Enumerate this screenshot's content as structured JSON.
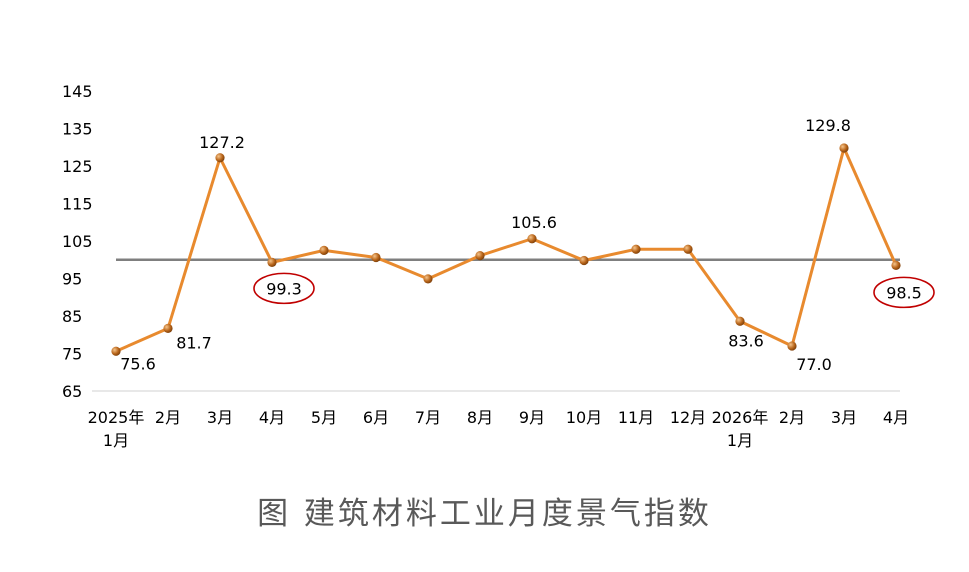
{
  "caption": "图 建筑材料工业月度景气指数",
  "chart_data": {
    "type": "line",
    "categories": [
      [
        "2025年",
        "1月"
      ],
      [
        "2月"
      ],
      [
        "3月"
      ],
      [
        "4月"
      ],
      [
        "5月"
      ],
      [
        "6月"
      ],
      [
        "7月"
      ],
      [
        "8月"
      ],
      [
        "9月"
      ],
      [
        "10月"
      ],
      [
        "11月"
      ],
      [
        "12月"
      ],
      [
        "2026年",
        "1月"
      ],
      [
        "2月"
      ],
      [
        "3月"
      ],
      [
        "4月"
      ]
    ],
    "series": [
      {
        "values": [
          75.6,
          81.7,
          127.2,
          99.3,
          102.5,
          100.6,
          94.9,
          101.1,
          105.6,
          99.8,
          102.8,
          102.8,
          83.6,
          77.0,
          129.8,
          98.5
        ]
      }
    ],
    "data_labels": [
      {
        "index": 0,
        "text": "75.6",
        "circled": false
      },
      {
        "index": 1,
        "text": "81.7",
        "circled": false
      },
      {
        "index": 2,
        "text": "127.2",
        "circled": false
      },
      {
        "index": 3,
        "text": "99.3",
        "circled": true
      },
      {
        "index": 8,
        "text": "105.6",
        "circled": false
      },
      {
        "index": 12,
        "text": "83.6",
        "circled": false
      },
      {
        "index": 13,
        "text": "77.0",
        "circled": false
      },
      {
        "index": 14,
        "text": "129.8",
        "circled": false
      },
      {
        "index": 15,
        "text": "98.5",
        "circled": true
      }
    ],
    "reference_line": 100,
    "yticks": [
      65,
      75,
      85,
      95,
      105,
      115,
      125,
      135,
      145
    ],
    "ylim": [
      65,
      145
    ],
    "grid": false,
    "colors": {
      "line": "#E88A2E",
      "marker": "#B8651A",
      "reference": "#7F7F7F",
      "circle": "#C00000",
      "axis": "#D9D9D9"
    }
  }
}
